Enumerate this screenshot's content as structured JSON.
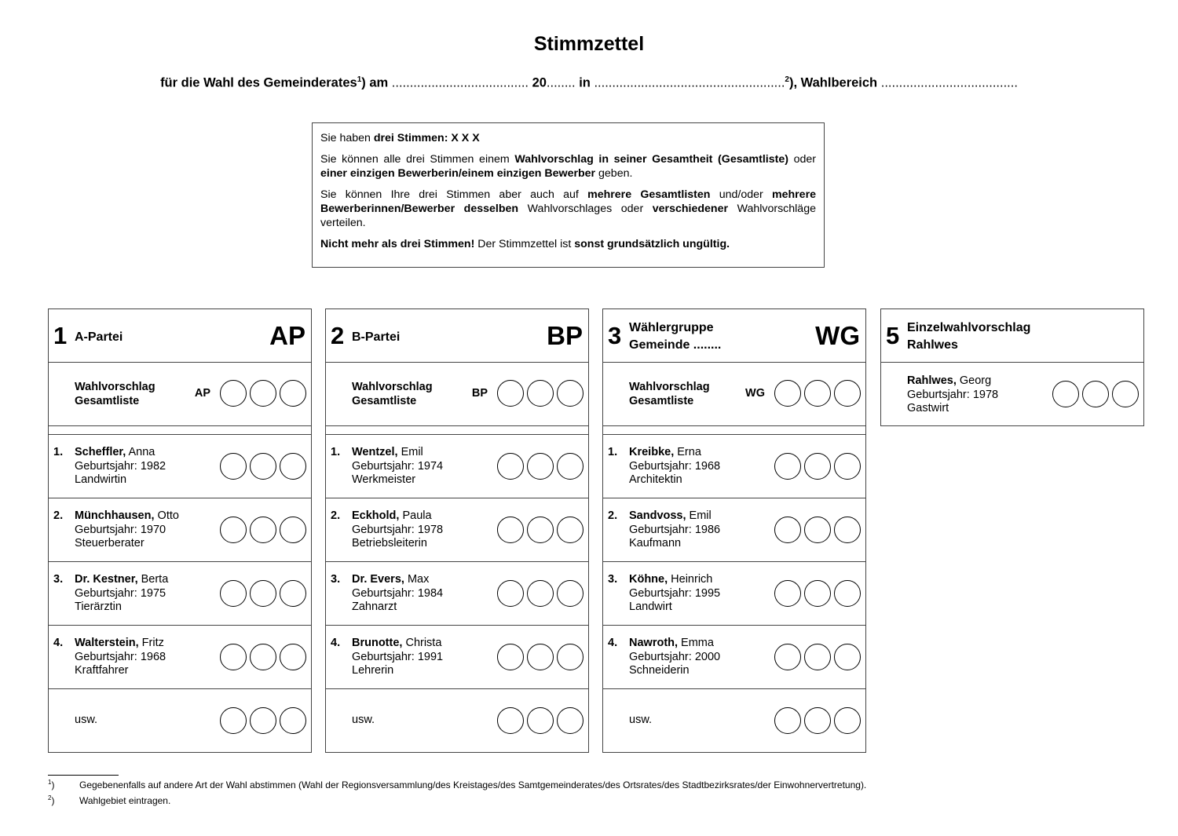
{
  "title": "Stimmzettel",
  "subtitle": {
    "part1": "für die Wahl des Gemeinderates",
    "sup1": "1",
    "part2": ") am ",
    "dots1": "......................................",
    "part3": " 20",
    "dots2": "........",
    "part4": " in ",
    "dots3": ".....................................................",
    "sup2": "2",
    "part5": "), Wahlbereich ",
    "dots4": "......................................"
  },
  "info": {
    "paragraphs": [
      [
        {
          "t": "Sie haben ",
          "b": false
        },
        {
          "t": "drei Stimmen: X X X",
          "b": true
        }
      ],
      [
        {
          "t": "Sie können alle drei Stimmen einem ",
          "b": false
        },
        {
          "t": "Wahlvorschlag in seiner Gesamtheit (Gesamtliste)",
          "b": true
        },
        {
          "t": " oder ",
          "b": false
        },
        {
          "t": "einer einzigen Bewerberin/einem einzigen Bewerber",
          "b": true
        },
        {
          "t": " geben.",
          "b": false
        }
      ],
      [
        {
          "t": "Sie können Ihre drei Stimmen aber auch auf ",
          "b": false
        },
        {
          "t": "mehrere Gesamtlisten",
          "b": true
        },
        {
          "t": " und/oder ",
          "b": false
        },
        {
          "t": "mehrere Bewerberinnen/Bewerber desselben",
          "b": true
        },
        {
          "t": " Wahlvorschlages oder ",
          "b": false
        },
        {
          "t": "verschiedener",
          "b": true
        },
        {
          "t": " Wahlvorschläge verteilen.",
          "b": false
        }
      ],
      [
        {
          "t": "Nicht mehr als drei Stimmen!",
          "b": true
        },
        {
          "t": " Der Stimmzettel ist ",
          "b": false
        },
        {
          "t": "sonst grundsätzlich ungültig.",
          "b": true
        }
      ]
    ]
  },
  "list_label": [
    "Wahlvorschlag",
    "Gesamtliste"
  ],
  "birth_label": "Geburtsjahr:",
  "etc_label": "usw.",
  "votes_per_row": 3,
  "proposals": [
    {
      "number": "1",
      "name": [
        "A-Partei"
      ],
      "abbr": "AP",
      "candidates": [
        {
          "pos": "1.",
          "surname": "Scheffler,",
          "firstname": "Anna",
          "birth": "1982",
          "job": "Landwirtin"
        },
        {
          "pos": "2.",
          "surname": "Münchhausen,",
          "firstname": "Otto",
          "birth": "1970",
          "job": "Steuerberater"
        },
        {
          "pos": "3.",
          "surname": "Dr. Kestner,",
          "firstname": "Berta",
          "birth": "1975",
          "job": "Tierärztin"
        },
        {
          "pos": "4.",
          "surname": "Walterstein,",
          "firstname": "Fritz",
          "birth": "1968",
          "job": "Kraftfahrer"
        }
      ]
    },
    {
      "number": "2",
      "name": [
        "B-Partei"
      ],
      "abbr": "BP",
      "candidates": [
        {
          "pos": "1.",
          "surname": "Wentzel,",
          "firstname": "Emil",
          "birth": "1974",
          "job": "Werkmeister"
        },
        {
          "pos": "2.",
          "surname": "Eckhold,",
          "firstname": "Paula",
          "birth": "1978",
          "job": "Betriebsleiterin"
        },
        {
          "pos": "3.",
          "surname": "Dr. Evers,",
          "firstname": "Max",
          "birth": "1984",
          "job": "Zahnarzt"
        },
        {
          "pos": "4.",
          "surname": "Brunotte,",
          "firstname": "Christa",
          "birth": "1991",
          "job": "Lehrerin"
        }
      ]
    },
    {
      "number": "3",
      "name": [
        "Wählergruppe",
        "Gemeinde ........"
      ],
      "abbr": "WG",
      "candidates": [
        {
          "pos": "1.",
          "surname": "Kreibke,",
          "firstname": "Erna",
          "birth": "1968",
          "job": "Architektin"
        },
        {
          "pos": "2.",
          "surname": "Sandvoss,",
          "firstname": "Emil",
          "birth": "1986",
          "job": "Kaufmann"
        },
        {
          "pos": "3.",
          "surname": "Köhne,",
          "firstname": "Heinrich",
          "birth": "1995",
          "job": "Landwirt"
        },
        {
          "pos": "4.",
          "surname": "Nawroth,",
          "firstname": "Emma",
          "birth": "2000",
          "job": "Schneiderin"
        }
      ]
    }
  ],
  "individual": {
    "number": "5",
    "name": [
      "Einzelwahlvorschlag",
      "Rahlwes"
    ],
    "candidate": {
      "surname": "Rahlwes,",
      "firstname": "Georg",
      "birth": "1978",
      "job": "Gastwirt"
    }
  },
  "footnotes": [
    {
      "mark": "1",
      "text": "Gegebenenfalls auf andere Art der Wahl abstimmen (Wahl der Regionsversammlung/des Kreistages/des Samtgemeinderates/des Ortsrates/des Stadtbezirksrates/der Einwohnervertretung)."
    },
    {
      "mark": "2",
      "text": "Wahlgebiet eintragen."
    }
  ]
}
